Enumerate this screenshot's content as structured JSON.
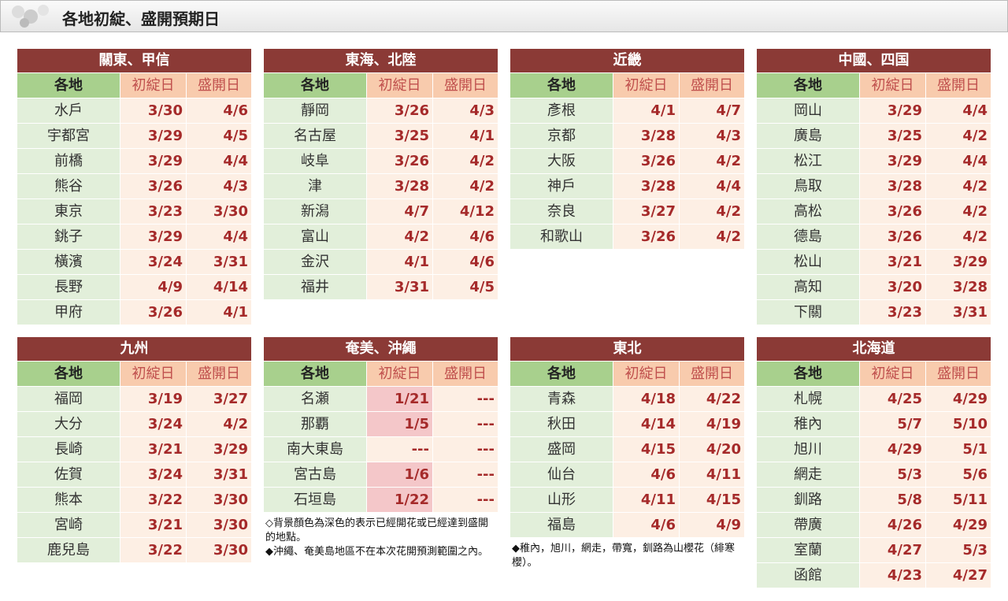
{
  "header": {
    "title": "各地初綻、盛開預期日"
  },
  "regions": [
    {
      "title": "關東、甲信",
      "columns": [
        "各地",
        "初綻日",
        "盛開日"
      ],
      "rows": [
        [
          "水戶",
          "3/30",
          "4/6"
        ],
        [
          "宇都宮",
          "3/29",
          "4/5"
        ],
        [
          "前橋",
          "3/29",
          "4/4"
        ],
        [
          "熊谷",
          "3/26",
          "4/3"
        ],
        [
          "東京",
          "3/23",
          "3/30"
        ],
        [
          "銚子",
          "3/29",
          "4/4"
        ],
        [
          "橫濱",
          "3/24",
          "3/31"
        ],
        [
          "長野",
          "4/9",
          "4/14"
        ],
        [
          "甲府",
          "3/26",
          "4/1"
        ]
      ]
    },
    {
      "title": "東海、北陸",
      "columns": [
        "各地",
        "初綻日",
        "盛開日"
      ],
      "rows": [
        [
          "靜岡",
          "3/26",
          "4/3"
        ],
        [
          "名古屋",
          "3/25",
          "4/1"
        ],
        [
          "岐阜",
          "3/26",
          "4/2"
        ],
        [
          "津",
          "3/28",
          "4/2"
        ],
        [
          "新潟",
          "4/7",
          "4/12"
        ],
        [
          "富山",
          "4/2",
          "4/6"
        ],
        [
          "金沢",
          "4/1",
          "4/6"
        ],
        [
          "福井",
          "3/31",
          "4/5"
        ]
      ]
    },
    {
      "title": "近畿",
      "columns": [
        "各地",
        "初綻日",
        "盛開日"
      ],
      "rows": [
        [
          "彥根",
          "4/1",
          "4/7"
        ],
        [
          "京都",
          "3/28",
          "4/3"
        ],
        [
          "大阪",
          "3/26",
          "4/2"
        ],
        [
          "神戶",
          "3/28",
          "4/4"
        ],
        [
          "奈良",
          "3/27",
          "4/2"
        ],
        [
          "和歌山",
          "3/26",
          "4/2"
        ]
      ]
    },
    {
      "title": "中國、四国",
      "columns": [
        "各地",
        "初綻日",
        "盛開日"
      ],
      "rows": [
        [
          "岡山",
          "3/29",
          "4/4"
        ],
        [
          "廣島",
          "3/25",
          "4/2"
        ],
        [
          "松江",
          "3/29",
          "4/4"
        ],
        [
          "鳥取",
          "3/28",
          "4/2"
        ],
        [
          "高松",
          "3/26",
          "4/2"
        ],
        [
          "德島",
          "3/26",
          "4/2"
        ],
        [
          "松山",
          "3/21",
          "3/29"
        ],
        [
          "高知",
          "3/20",
          "3/28"
        ],
        [
          "下關",
          "3/23",
          "3/31"
        ]
      ]
    },
    {
      "title": "九州",
      "columns": [
        "各地",
        "初綻日",
        "盛開日"
      ],
      "rows": [
        [
          "福岡",
          "3/19",
          "3/27"
        ],
        [
          "大分",
          "3/24",
          "4/2"
        ],
        [
          "長崎",
          "3/21",
          "3/29"
        ],
        [
          "佐賀",
          "3/24",
          "3/31"
        ],
        [
          "熊本",
          "3/22",
          "3/30"
        ],
        [
          "宮崎",
          "3/21",
          "3/30"
        ],
        [
          "鹿兒島",
          "3/22",
          "3/30"
        ]
      ]
    },
    {
      "title": "奄美、沖繩",
      "columns": [
        "各地",
        "初綻日",
        "盛開日"
      ],
      "rows": [
        [
          "名瀬",
          "1/21",
          "---"
        ],
        [
          "那覇",
          "1/5",
          "---"
        ],
        [
          "南大東島",
          "---",
          "---"
        ],
        [
          "宮古島",
          "1/6",
          "---"
        ],
        [
          "石垣島",
          "1/22",
          "---"
        ]
      ],
      "highlighted_cells": [
        [
          0,
          1
        ],
        [
          1,
          1
        ],
        [
          3,
          1
        ],
        [
          4,
          1
        ]
      ],
      "notes": [
        "◇背景顏色為深色的表示已經開花或已經達到盛開的地點。",
        "◆沖繩、奄美島地區不在本次花開預測範圍之內。"
      ]
    },
    {
      "title": "東北",
      "columns": [
        "各地",
        "初綻日",
        "盛開日"
      ],
      "rows": [
        [
          "青森",
          "4/18",
          "4/22"
        ],
        [
          "秋田",
          "4/14",
          "4/19"
        ],
        [
          "盛岡",
          "4/15",
          "4/20"
        ],
        [
          "仙台",
          "4/6",
          "4/11"
        ],
        [
          "山形",
          "4/11",
          "4/15"
        ],
        [
          "福島",
          "4/6",
          "4/9"
        ]
      ],
      "notes": [
        "◆稚內，旭川，網走，帶寬，釧路為山櫻花（緋寒櫻）。"
      ]
    },
    {
      "title": "北海道",
      "columns": [
        "各地",
        "初綻日",
        "盛開日"
      ],
      "rows": [
        [
          "札幌",
          "4/25",
          "4/29"
        ],
        [
          "稚內",
          "5/7",
          "5/10"
        ],
        [
          "旭川",
          "4/29",
          "5/1"
        ],
        [
          "網走",
          "5/3",
          "5/6"
        ],
        [
          "釧路",
          "5/8",
          "5/11"
        ],
        [
          "帶廣",
          "4/26",
          "4/29"
        ],
        [
          "室蘭",
          "4/27",
          "5/3"
        ],
        [
          "函館",
          "4/23",
          "4/27"
        ]
      ]
    }
  ]
}
